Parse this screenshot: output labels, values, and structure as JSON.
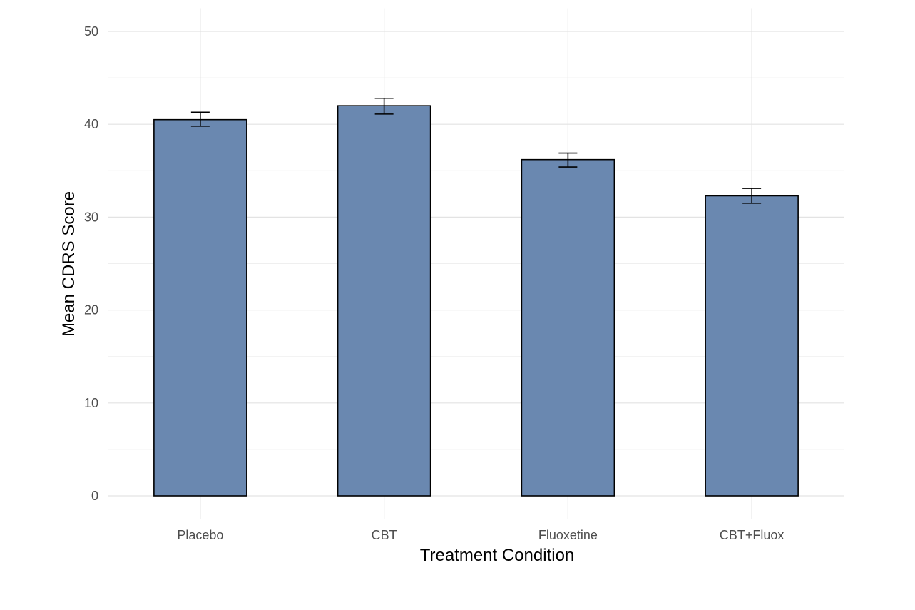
{
  "chart_data": {
    "type": "bar",
    "categories": [
      "Placebo",
      "CBT",
      "Fluoxetine",
      "CBT+Fluox"
    ],
    "values": [
      40.5,
      42.0,
      36.2,
      32.3
    ],
    "error_lower": [
      39.8,
      41.1,
      35.4,
      31.5
    ],
    "error_upper": [
      41.3,
      42.8,
      36.9,
      33.1
    ],
    "xlabel": "Treatment Condition",
    "ylabel": "Mean CDRS Score",
    "ylim": [
      0,
      52.5
    ],
    "yticks": [
      0,
      10,
      20,
      30,
      40,
      50
    ],
    "grid": true,
    "bar_color": "#6a88b0",
    "bar_outline": "#000000"
  }
}
